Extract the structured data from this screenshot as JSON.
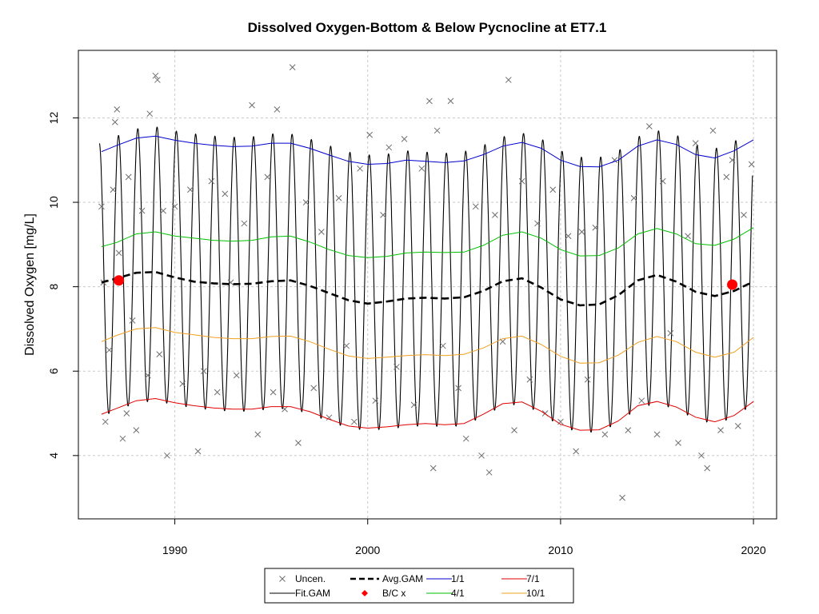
{
  "chart_data": {
    "type": "line",
    "title": "Dissolved Oxygen-Bottom & Below Pycnocline at ET7.1",
    "xlabel": "",
    "ylabel": "Dissolved Oxygen [mg/L]",
    "xlim": [
      1985,
      2021.2
    ],
    "ylim": [
      2.5,
      13.6
    ],
    "x_ticks": [
      1990,
      2000,
      2010,
      2020
    ],
    "y_ticks": [
      4,
      6,
      8,
      10,
      12
    ],
    "grid": true,
    "legend_position": "bottom-center",
    "legend": [
      {
        "key": "uncen",
        "label": "Uncen."
      },
      {
        "key": "avg",
        "label": "Avg.GAM"
      },
      {
        "key": "s1",
        "label": "1/1"
      },
      {
        "key": "s7",
        "label": "7/1"
      },
      {
        "key": "fit",
        "label": "Fit.GAM"
      },
      {
        "key": "bc",
        "label": "B/C x"
      },
      {
        "key": "s4",
        "label": "4/1"
      },
      {
        "key": "s10",
        "label": "10/1"
      }
    ],
    "colors": {
      "fit": "#000000",
      "avg": "#000000",
      "jan": "#0000cd",
      "apr": "#00c000",
      "jul": "#e00000",
      "oct": "#f0a020",
      "uncen": "#6e6e6e",
      "bc": "#ff0000"
    },
    "seasonal_fit": {
      "x_range": [
        1986.1,
        2019.95
      ],
      "min_month_fraction": 0.6,
      "max_month_fraction": 0.08
    },
    "series": [
      {
        "key": "jan",
        "name": "1/1",
        "x": [
          1986.2,
          1987,
          1988,
          1989,
          1990,
          1991,
          1992,
          1993,
          1994,
          1995,
          1996,
          1997,
          1998,
          1999,
          2000,
          2001,
          2002,
          2003,
          2004,
          2005,
          2006,
          2007,
          2008,
          2009,
          2010,
          2011,
          2012,
          2013,
          2014,
          2015,
          2016,
          2017,
          2018,
          2019,
          2020
        ],
        "y": [
          11.2,
          11.35,
          11.52,
          11.57,
          11.47,
          11.4,
          11.35,
          11.32,
          11.33,
          11.4,
          11.4,
          11.28,
          11.12,
          10.97,
          10.9,
          10.92,
          11.0,
          10.97,
          10.94,
          10.98,
          11.13,
          11.33,
          11.42,
          11.28,
          11.0,
          10.85,
          10.84,
          11.0,
          11.33,
          11.48,
          11.37,
          11.13,
          11.05,
          11.22,
          11.48
        ]
      },
      {
        "key": "apr",
        "name": "4/1",
        "x": [
          1986.2,
          1987,
          1988,
          1989,
          1990,
          1991,
          1992,
          1993,
          1994,
          1995,
          1996,
          1997,
          1998,
          1999,
          2000,
          2001,
          2002,
          2003,
          2004,
          2005,
          2006,
          2007,
          2008,
          2009,
          2010,
          2011,
          2012,
          2013,
          2014,
          2015,
          2016,
          2017,
          2018,
          2019,
          2020
        ],
        "y": [
          8.95,
          9.05,
          9.25,
          9.3,
          9.2,
          9.15,
          9.1,
          9.08,
          9.1,
          9.18,
          9.2,
          9.06,
          8.88,
          8.74,
          8.69,
          8.72,
          8.8,
          8.82,
          8.81,
          8.82,
          8.98,
          9.22,
          9.3,
          9.15,
          8.88,
          8.73,
          8.74,
          8.92,
          9.25,
          9.38,
          9.25,
          9.02,
          8.98,
          9.13,
          9.4
        ]
      },
      {
        "key": "oct",
        "name": "10/1",
        "x": [
          1986.2,
          1987,
          1988,
          1989,
          1990,
          1991,
          1992,
          1993,
          1994,
          1995,
          1996,
          1997,
          1998,
          1999,
          2000,
          2001,
          2002,
          2003,
          2004,
          2005,
          2006,
          2007,
          2008,
          2009,
          2010,
          2011,
          2012,
          2013,
          2014,
          2015,
          2016,
          2017,
          2018,
          2019,
          2020
        ],
        "y": [
          6.7,
          6.85,
          7.0,
          7.03,
          6.92,
          6.86,
          6.8,
          6.77,
          6.77,
          6.82,
          6.83,
          6.7,
          6.52,
          6.36,
          6.3,
          6.33,
          6.37,
          6.39,
          6.37,
          6.4,
          6.55,
          6.77,
          6.83,
          6.63,
          6.35,
          6.19,
          6.2,
          6.38,
          6.68,
          6.82,
          6.7,
          6.45,
          6.33,
          6.45,
          6.8
        ]
      },
      {
        "key": "jul",
        "name": "7/1",
        "x": [
          1986.2,
          1987,
          1988,
          1989,
          1990,
          1991,
          1992,
          1993,
          1994,
          1995,
          1996,
          1997,
          1998,
          1999,
          2000,
          2001,
          2002,
          2003,
          2004,
          2005,
          2006,
          2007,
          2008,
          2009,
          2010,
          2011,
          2012,
          2013,
          2014,
          2015,
          2016,
          2017,
          2018,
          2019,
          2020
        ],
        "y": [
          4.98,
          5.12,
          5.3,
          5.35,
          5.25,
          5.18,
          5.13,
          5.1,
          5.1,
          5.16,
          5.16,
          5.04,
          4.86,
          4.7,
          4.65,
          4.68,
          4.73,
          4.76,
          4.73,
          4.76,
          4.98,
          5.23,
          5.27,
          5.05,
          4.74,
          4.6,
          4.61,
          4.82,
          5.18,
          5.28,
          5.15,
          4.91,
          4.8,
          4.95,
          5.28
        ]
      },
      {
        "key": "avg",
        "name": "Avg.GAM",
        "x": [
          1986.2,
          1987,
          1988,
          1989,
          1990,
          1991,
          1992,
          1993,
          1994,
          1995,
          1996,
          1997,
          1998,
          1999,
          2000,
          2001,
          2002,
          2003,
          2004,
          2005,
          2006,
          2007,
          2008,
          2009,
          2010,
          2011,
          2012,
          2013,
          2014,
          2015,
          2016,
          2017,
          2018,
          2019,
          2019.9
        ],
        "y": [
          8.1,
          8.2,
          8.33,
          8.35,
          8.22,
          8.12,
          8.08,
          8.06,
          8.07,
          8.13,
          8.15,
          8.02,
          7.85,
          7.68,
          7.6,
          7.65,
          7.72,
          7.74,
          7.72,
          7.75,
          7.9,
          8.13,
          8.2,
          7.98,
          7.7,
          7.56,
          7.58,
          7.8,
          8.15,
          8.28,
          8.12,
          7.88,
          7.78,
          7.9,
          8.1
        ]
      }
    ],
    "bc_points": {
      "x": [
        1987.1,
        2018.9
      ],
      "y": [
        8.15,
        8.05
      ]
    },
    "uncensored": {
      "x": [
        1986.2,
        1986.3,
        1986.4,
        1986.6,
        1986.8,
        1986.9,
        1987.0,
        1987.1,
        1987.3,
        1987.5,
        1987.6,
        1987.8,
        1988.0,
        1988.3,
        1988.6,
        1988.7,
        1989.0,
        1989.1,
        1989.2,
        1989.4,
        1989.6,
        1990.0,
        1990.4,
        1990.8,
        1991.2,
        1991.5,
        1991.9,
        1992.2,
        1992.6,
        1992.9,
        1993.2,
        1993.6,
        1994.0,
        1994.3,
        1994.8,
        1995.1,
        1995.3,
        1995.7,
        1996.1,
        1996.4,
        1996.8,
        1997.2,
        1997.6,
        1998.0,
        1998.5,
        1998.9,
        1999.3,
        1999.6,
        2000.1,
        2000.4,
        2000.8,
        2001.1,
        2001.5,
        2001.9,
        2002.4,
        2002.8,
        2003.2,
        2003.4,
        2003.6,
        2003.9,
        2004.3,
        2004.7,
        2005.1,
        2005.6,
        2005.9,
        2006.3,
        2006.6,
        2007.0,
        2007.3,
        2007.6,
        2008.0,
        2008.4,
        2008.8,
        2009.2,
        2009.6,
        2010.0,
        2010.4,
        2010.8,
        2011.1,
        2011.4,
        2011.8,
        2012.3,
        2012.8,
        2013.2,
        2013.5,
        2013.8,
        2014.2,
        2014.6,
        2015.0,
        2015.3,
        2015.7,
        2016.1,
        2016.6,
        2017.0,
        2017.3,
        2017.6,
        2017.9,
        2018.3,
        2018.6,
        2018.9,
        2019.2,
        2019.5,
        2019.9
      ],
      "y": [
        9.9,
        8.1,
        4.8,
        6.5,
        10.3,
        11.9,
        12.2,
        8.8,
        4.4,
        5.0,
        10.6,
        7.2,
        4.6,
        9.8,
        5.9,
        12.1,
        13.0,
        12.9,
        6.4,
        9.8,
        4.0,
        9.9,
        5.7,
        10.3,
        4.1,
        6.0,
        10.5,
        5.5,
        10.2,
        8.1,
        5.9,
        9.5,
        12.3,
        4.5,
        10.6,
        5.5,
        12.2,
        5.1,
        13.2,
        4.3,
        10.0,
        5.6,
        9.3,
        4.9,
        10.1,
        6.6,
        4.8,
        10.8,
        11.6,
        5.3,
        9.7,
        11.3,
        6.1,
        11.5,
        5.2,
        10.8,
        12.4,
        3.7,
        11.7,
        6.6,
        12.4,
        5.6,
        4.4,
        9.9,
        4.0,
        3.6,
        9.7,
        6.7,
        12.9,
        4.6,
        10.5,
        5.8,
        9.5,
        5.0,
        10.3,
        4.8,
        9.2,
        4.1,
        9.3,
        5.8,
        9.4,
        4.5,
        11.0,
        3.0,
        4.6,
        10.1,
        5.3,
        11.8,
        4.5,
        10.5,
        6.9,
        4.3,
        9.2,
        11.4,
        4.0,
        3.7,
        11.7,
        4.6,
        10.6,
        11.0,
        4.7,
        9.7,
        10.9
      ]
    }
  }
}
